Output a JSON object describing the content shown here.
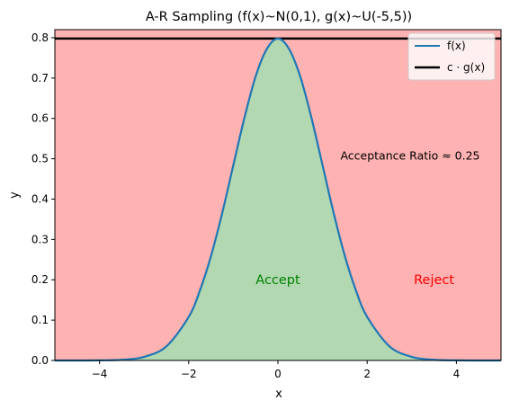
{
  "chart_data": {
    "type": "area",
    "title": "A-R Sampling (f(x)~N(0,1), g(x)~U(-5,5))",
    "xlabel": "x",
    "ylabel": "y",
    "xlim": [
      -5,
      5
    ],
    "ylim": [
      0,
      0.82
    ],
    "xticks": [
      -4,
      -2,
      0,
      2,
      4
    ],
    "xtick_labels": [
      "−4",
      "−2",
      "0",
      "2",
      "4"
    ],
    "yticks": [
      0.0,
      0.1,
      0.2,
      0.3,
      0.4,
      0.5,
      0.6,
      0.7,
      0.8
    ],
    "ytick_labels": [
      "0.0",
      "0.1",
      "0.2",
      "0.3",
      "0.4",
      "0.5",
      "0.6",
      "0.7",
      "0.8"
    ],
    "grid": false,
    "legend_position": "upper right",
    "series": [
      {
        "name": "f(x)",
        "kind": "line",
        "color": "#1f77b4",
        "x": [
          -5,
          -4.5,
          -4,
          -3.5,
          -3,
          -2.5,
          -2,
          -1.75,
          -1.5,
          -1.25,
          -1,
          -0.75,
          -0.5,
          -0.25,
          0,
          0.25,
          0.5,
          0.75,
          1,
          1.25,
          1.5,
          1.75,
          2,
          2.5,
          3,
          3.5,
          4,
          4.5,
          5
        ],
        "y": [
          0.0,
          0.0,
          0.0003,
          0.0017,
          0.0089,
          0.035,
          0.108,
          0.173,
          0.259,
          0.365,
          0.484,
          0.602,
          0.704,
          0.772,
          0.798,
          0.772,
          0.704,
          0.602,
          0.484,
          0.365,
          0.259,
          0.173,
          0.108,
          0.035,
          0.0089,
          0.0017,
          0.0003,
          0.0,
          0.0
        ]
      },
      {
        "name": "c · g(x)",
        "kind": "hline",
        "color": "#000000",
        "y": 0.798
      }
    ],
    "regions": [
      {
        "label": "Accept",
        "color": "#008000",
        "fill": "#b2d8b2"
      },
      {
        "label": "Reject",
        "color": "#ff0000",
        "fill": "#ffb2b2"
      }
    ],
    "annotations": [
      {
        "text": "Acceptance Ratio ≈ 0.25",
        "x": 1.4,
        "y": 0.5,
        "color": "#000000"
      },
      {
        "text": "Accept",
        "x": 0,
        "y": 0.2,
        "color": "#008000"
      },
      {
        "text": "Reject",
        "x": 3.5,
        "y": 0.2,
        "color": "#ff0000"
      }
    ]
  }
}
